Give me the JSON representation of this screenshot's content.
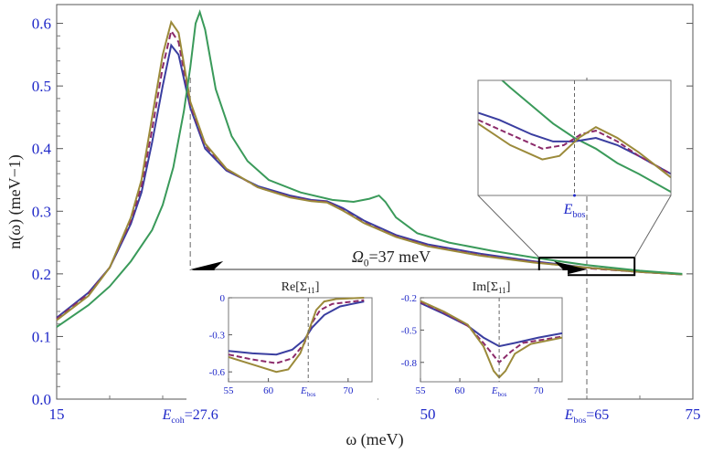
{
  "chart_data": [
    {
      "type": "line",
      "xlabel": "ω (meV)",
      "ylabel": "n(ω) (meV−1)",
      "xlim": [
        15,
        75
      ],
      "ylim": [
        0,
        0.63
      ],
      "x_ticks": [
        "15",
        "50",
        "75"
      ],
      "x_tick_values": [
        15,
        50,
        75
      ],
      "special_x_ticks": [
        {
          "text": "E",
          "sub": "coh",
          "suffix": "=27.6",
          "x": 27.6
        },
        {
          "text": "E",
          "sub": "bos",
          "suffix": "=65",
          "x": 65
        }
      ],
      "y_ticks": [
        "0.0",
        "0.1",
        "0.2",
        "0.3",
        "0.4",
        "0.5",
        "0.6"
      ],
      "y_tick_values": [
        0,
        0.1,
        0.2,
        0.3,
        0.4,
        0.5,
        0.6
      ],
      "annotation": {
        "text": "Ω",
        "sub": "0",
        "suffix": "=37 meV",
        "from_x": 65,
        "to_x": 27.6,
        "y": 0.207
      },
      "series": [
        {
          "color": "#3a3ea0",
          "points": [
            [
              15,
              0.13
            ],
            [
              18,
              0.17
            ],
            [
              20,
              0.21
            ],
            [
              22,
              0.28
            ],
            [
              23,
              0.33
            ],
            [
              24,
              0.41
            ],
            [
              25,
              0.5
            ],
            [
              25.8,
              0.565
            ],
            [
              26.5,
              0.55
            ],
            [
              27.6,
              0.465
            ],
            [
              29,
              0.4
            ],
            [
              31,
              0.365
            ],
            [
              34,
              0.34
            ],
            [
              37,
              0.325
            ],
            [
              39,
              0.318
            ],
            [
              40.5,
              0.316
            ],
            [
              42,
              0.305
            ],
            [
              44,
              0.285
            ],
            [
              47,
              0.262
            ],
            [
              50,
              0.247
            ],
            [
              55,
              0.232
            ],
            [
              60,
              0.22
            ],
            [
              65,
              0.21
            ],
            [
              70,
              0.203
            ],
            [
              74,
              0.199
            ]
          ]
        },
        {
          "color": "#8b2a6a",
          "dashed": true,
          "points": [
            [
              15,
              0.128
            ],
            [
              18,
              0.168
            ],
            [
              20,
              0.21
            ],
            [
              22,
              0.285
            ],
            [
              23,
              0.34
            ],
            [
              24,
              0.43
            ],
            [
              25,
              0.53
            ],
            [
              25.8,
              0.588
            ],
            [
              26.5,
              0.57
            ],
            [
              27.6,
              0.47
            ],
            [
              29,
              0.405
            ],
            [
              31,
              0.367
            ],
            [
              34,
              0.338
            ],
            [
              37,
              0.323
            ],
            [
              39,
              0.317
            ],
            [
              40.5,
              0.315
            ],
            [
              42,
              0.302
            ],
            [
              44,
              0.282
            ],
            [
              47,
              0.26
            ],
            [
              50,
              0.245
            ],
            [
              55,
              0.23
            ],
            [
              60,
              0.219
            ],
            [
              65,
              0.209
            ],
            [
              70,
              0.203
            ],
            [
              74,
              0.199
            ]
          ]
        },
        {
          "color": "#9b8a3a",
          "points": [
            [
              15,
              0.126
            ],
            [
              18,
              0.165
            ],
            [
              20,
              0.21
            ],
            [
              22,
              0.29
            ],
            [
              23,
              0.35
            ],
            [
              24,
              0.45
            ],
            [
              25,
              0.55
            ],
            [
              25.8,
              0.602
            ],
            [
              26.5,
              0.585
            ],
            [
              27.6,
              0.475
            ],
            [
              29,
              0.408
            ],
            [
              31,
              0.368
            ],
            [
              34,
              0.338
            ],
            [
              37,
              0.322
            ],
            [
              39,
              0.316
            ],
            [
              40.5,
              0.314
            ],
            [
              42,
              0.301
            ],
            [
              44,
              0.281
            ],
            [
              47,
              0.259
            ],
            [
              50,
              0.244
            ],
            [
              55,
              0.229
            ],
            [
              60,
              0.218
            ],
            [
              65,
              0.21
            ],
            [
              70,
              0.203
            ],
            [
              74,
              0.199
            ]
          ]
        },
        {
          "color": "#3a9a5a",
          "points": [
            [
              15,
              0.115
            ],
            [
              18,
              0.15
            ],
            [
              20,
              0.18
            ],
            [
              22,
              0.22
            ],
            [
              24,
              0.27
            ],
            [
              25,
              0.31
            ],
            [
              26,
              0.37
            ],
            [
              27,
              0.46
            ],
            [
              27.6,
              0.53
            ],
            [
              28.1,
              0.6
            ],
            [
              28.5,
              0.618
            ],
            [
              29,
              0.59
            ],
            [
              30,
              0.495
            ],
            [
              31.5,
              0.42
            ],
            [
              33,
              0.38
            ],
            [
              35,
              0.35
            ],
            [
              38,
              0.33
            ],
            [
              41,
              0.318
            ],
            [
              43,
              0.315
            ],
            [
              44.5,
              0.32
            ],
            [
              45.4,
              0.325
            ],
            [
              46,
              0.315
            ],
            [
              47,
              0.29
            ],
            [
              49,
              0.265
            ],
            [
              52,
              0.25
            ],
            [
              56,
              0.237
            ],
            [
              60,
              0.226
            ],
            [
              65,
              0.214
            ],
            [
              70,
              0.205
            ],
            [
              74,
              0.2
            ]
          ]
        }
      ]
    },
    {
      "type": "line",
      "title": "Re[Σ",
      "title_sub": "11",
      "title_suffix": "]",
      "xlim": [
        55,
        73
      ],
      "ylim": [
        -0.68,
        0
      ],
      "x_ticks": [
        "55",
        "60",
        "70"
      ],
      "x_tick_values": [
        55,
        60,
        70
      ],
      "ebos_label": "E",
      "ebos_sub": "bos",
      "ebos_x": 65,
      "y_ticks": [
        "0",
        "-0.3",
        "-0.6"
      ],
      "y_tick_values": [
        0,
        -0.3,
        -0.6
      ],
      "series": [
        {
          "color": "#3a3ea0",
          "points": [
            [
              55,
              -0.43
            ],
            [
              58,
              -0.45
            ],
            [
              61,
              -0.46
            ],
            [
              63,
              -0.42
            ],
            [
              64.5,
              -0.34
            ],
            [
              65.5,
              -0.24
            ],
            [
              67,
              -0.14
            ],
            [
              69,
              -0.07
            ],
            [
              72,
              -0.03
            ]
          ]
        },
        {
          "color": "#8b2a6a",
          "dashed": true,
          "points": [
            [
              55,
              -0.46
            ],
            [
              58,
              -0.5
            ],
            [
              61,
              -0.53
            ],
            [
              63,
              -0.49
            ],
            [
              64.5,
              -0.37
            ],
            [
              65.5,
              -0.2
            ],
            [
              66.5,
              -0.1
            ],
            [
              68,
              -0.05
            ],
            [
              72,
              -0.02
            ]
          ]
        },
        {
          "color": "#9b8a3a",
          "points": [
            [
              55,
              -0.48
            ],
            [
              58,
              -0.54
            ],
            [
              61,
              -0.6
            ],
            [
              62.5,
              -0.58
            ],
            [
              64,
              -0.45
            ],
            [
              65,
              -0.28
            ],
            [
              66,
              -0.1
            ],
            [
              67,
              -0.03
            ],
            [
              68.5,
              -0.01
            ],
            [
              72,
              0
            ]
          ]
        }
      ]
    },
    {
      "type": "line",
      "title": "Im[Σ",
      "title_sub": "11",
      "title_suffix": "]",
      "xlim": [
        55,
        73
      ],
      "ylim": [
        -0.98,
        -0.2
      ],
      "x_ticks": [
        "55",
        "60",
        "70"
      ],
      "x_tick_values": [
        55,
        60,
        70
      ],
      "ebos_label": "E",
      "ebos_sub": "bos",
      "ebos_x": 65,
      "y_ticks": [
        "-0.2",
        "-0.5",
        "-0.8"
      ],
      "y_tick_values": [
        -0.2,
        -0.5,
        -0.8
      ],
      "series": [
        {
          "color": "#3a3ea0",
          "points": [
            [
              55,
              -0.25
            ],
            [
              58,
              -0.35
            ],
            [
              61,
              -0.46
            ],
            [
              63,
              -0.57
            ],
            [
              65,
              -0.65
            ],
            [
              67,
              -0.62
            ],
            [
              70,
              -0.57
            ],
            [
              73,
              -0.53
            ]
          ]
        },
        {
          "color": "#8b2a6a",
          "dashed": true,
          "points": [
            [
              55,
              -0.24
            ],
            [
              58,
              -0.34
            ],
            [
              61,
              -0.46
            ],
            [
              63,
              -0.62
            ],
            [
              65,
              -0.8
            ],
            [
              66.5,
              -0.7
            ],
            [
              68,
              -0.62
            ],
            [
              73,
              -0.56
            ]
          ]
        },
        {
          "color": "#9b8a3a",
          "points": [
            [
              55,
              -0.23
            ],
            [
              58,
              -0.33
            ],
            [
              61,
              -0.45
            ],
            [
              63,
              -0.65
            ],
            [
              64.3,
              -0.88
            ],
            [
              65,
              -0.94
            ],
            [
              65.8,
              -0.88
            ],
            [
              67,
              -0.72
            ],
            [
              69,
              -0.63
            ],
            [
              73,
              -0.57
            ]
          ]
        }
      ]
    },
    {
      "type": "line",
      "xlim": [
        60.5,
        69.5
      ],
      "ylim": [
        0.198,
        0.23
      ],
      "ebos_label": "E",
      "ebos_sub": "bos",
      "ebos_x": 65,
      "series": [
        {
          "color": "#3a9a5a",
          "points": [
            [
              60.5,
              0.236
            ],
            [
              62,
              0.228
            ],
            [
              64,
              0.218
            ],
            [
              65,
              0.214
            ],
            [
              66,
              0.211
            ],
            [
              67,
              0.207
            ],
            [
              68,
              0.204
            ],
            [
              69.5,
              0.199
            ]
          ]
        },
        {
          "color": "#3a3ea0",
          "points": [
            [
              60.5,
              0.221
            ],
            [
              61.5,
              0.219
            ],
            [
              63,
              0.215
            ],
            [
              64,
              0.213
            ],
            [
              65,
              0.213
            ],
            [
              66,
              0.214
            ],
            [
              67,
              0.212
            ],
            [
              68,
              0.209
            ],
            [
              69.5,
              0.204
            ]
          ]
        },
        {
          "color": "#8b2a6a",
          "dashed": true,
          "points": [
            [
              60.5,
              0.219
            ],
            [
              62,
              0.215
            ],
            [
              63.5,
              0.211
            ],
            [
              64.5,
              0.212
            ],
            [
              65.3,
              0.215
            ],
            [
              66,
              0.216
            ],
            [
              67,
              0.213
            ],
            [
              68,
              0.209
            ],
            [
              69.5,
              0.204
            ]
          ]
        },
        {
          "color": "#9b8a3a",
          "points": [
            [
              60.5,
              0.218
            ],
            [
              62,
              0.212
            ],
            [
              63.5,
              0.208
            ],
            [
              64.3,
              0.209
            ],
            [
              65.2,
              0.214
            ],
            [
              66,
              0.217
            ],
            [
              67,
              0.214
            ],
            [
              68,
              0.21
            ],
            [
              69.5,
              0.203
            ]
          ]
        }
      ]
    }
  ]
}
